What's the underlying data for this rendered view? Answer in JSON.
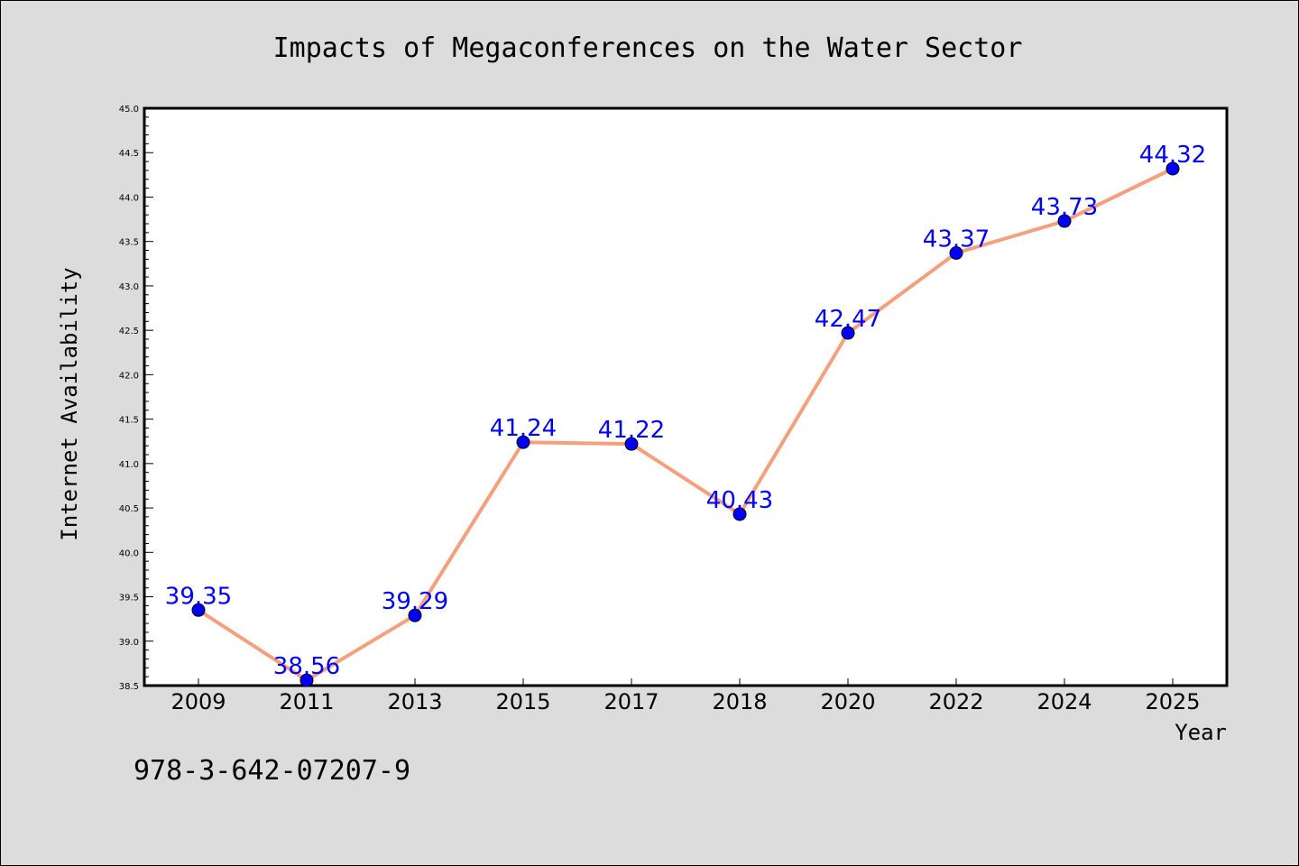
{
  "chart_data": {
    "type": "line",
    "title": "Impacts of Megaconferences on the Water Sector",
    "xlabel": "Year",
    "ylabel": "Internet Availability",
    "categories": [
      "2009",
      "2011",
      "2013",
      "2015",
      "2017",
      "2018",
      "2020",
      "2022",
      "2024",
      "2025"
    ],
    "series": [
      {
        "values": [
          39.35,
          38.56,
          39.29,
          41.24,
          41.22,
          40.43,
          42.47,
          43.37,
          43.73,
          44.32
        ],
        "labels": [
          "39.35",
          "38.56",
          "39.29",
          "41.24",
          "41.22",
          "40.43",
          "42.47",
          "43.37",
          "43.73",
          "44.32"
        ]
      }
    ],
    "ylim": [
      38.5,
      45.0
    ],
    "yticks": [
      "38.5",
      "39.0",
      "39.5",
      "40.0",
      "40.5",
      "41.0",
      "41.5",
      "42.0",
      "42.5",
      "43.0",
      "43.5",
      "44.0",
      "44.5",
      "45.0"
    ],
    "grid": false,
    "legend": "none",
    "colors": {
      "line": "#f4a07c",
      "marker": "#0000ff",
      "label": "#0000ff",
      "background": "#dcdcdc",
      "plot_background": "#ffffff"
    }
  },
  "annotation": {
    "isbn": "978-3-642-07207-9"
  }
}
